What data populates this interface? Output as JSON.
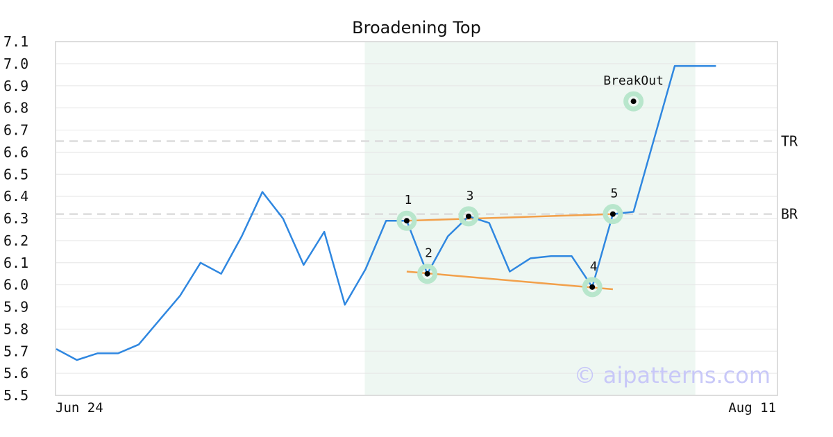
{
  "chart_data": {
    "type": "line",
    "title": "Broadening Top",
    "xlabel": "",
    "ylabel": "",
    "x_tick_labels": [
      "Jun 24",
      "Aug 11"
    ],
    "ylim": [
      5.5,
      7.1
    ],
    "y_ticks": [
      "5.5",
      "5.6",
      "5.7",
      "5.8",
      "5.9",
      "6.0",
      "6.1",
      "6.2",
      "6.3",
      "6.4",
      "6.5",
      "6.6",
      "6.7",
      "6.8",
      "6.9",
      "7.0",
      "7.1"
    ],
    "grid": true,
    "series": [
      {
        "color": "#2f87e0",
        "values": [
          5.71,
          5.66,
          5.69,
          5.69,
          5.73,
          5.84,
          5.95,
          6.1,
          6.05,
          6.22,
          6.42,
          6.3,
          6.09,
          6.24,
          5.91,
          6.07,
          6.29,
          6.29,
          6.05,
          6.22,
          6.31,
          6.28,
          6.06,
          6.12,
          6.13,
          6.13,
          5.99,
          6.32,
          6.33,
          6.66,
          6.99,
          6.99,
          6.99
        ]
      }
    ],
    "highlight_region": {
      "from_index": 15,
      "to_index": 31,
      "color": "#eef7f2"
    },
    "levels": [
      {
        "label": "TR",
        "value": 6.65
      },
      {
        "label": "BR",
        "value": 6.32
      }
    ],
    "trendlines": [
      {
        "color": "#f2a04a",
        "from": [
          17,
          6.29
        ],
        "to": [
          27,
          6.32
        ]
      },
      {
        "color": "#f2a04a",
        "from": [
          17,
          6.06
        ],
        "to": [
          27,
          5.98
        ]
      }
    ],
    "pivots": [
      {
        "label": "1",
        "index": 17,
        "value": 6.29
      },
      {
        "label": "2",
        "index": 18,
        "value": 6.05
      },
      {
        "label": "3",
        "index": 20,
        "value": 6.31
      },
      {
        "label": "4",
        "index": 26,
        "value": 5.99
      },
      {
        "label": "5",
        "index": 27,
        "value": 6.32
      }
    ],
    "breakout": {
      "label": "BreakOut",
      "index": 28,
      "value": 6.83
    },
    "marker_color": "#b8e6cc"
  },
  "watermark": "© aipatterns.com"
}
